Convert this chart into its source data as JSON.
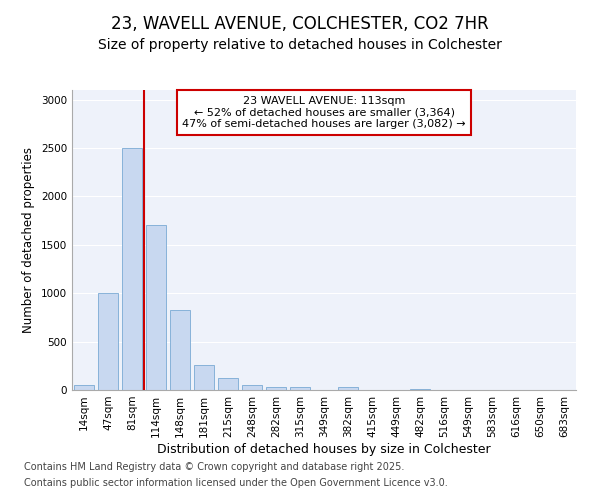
{
  "title1": "23, WAVELL AVENUE, COLCHESTER, CO2 7HR",
  "title2": "Size of property relative to detached houses in Colchester",
  "xlabel": "Distribution of detached houses by size in Colchester",
  "ylabel": "Number of detached properties",
  "categories": [
    "14sqm",
    "47sqm",
    "81sqm",
    "114sqm",
    "148sqm",
    "181sqm",
    "215sqm",
    "248sqm",
    "282sqm",
    "315sqm",
    "349sqm",
    "382sqm",
    "415sqm",
    "449sqm",
    "482sqm",
    "516sqm",
    "549sqm",
    "583sqm",
    "616sqm",
    "650sqm",
    "683sqm"
  ],
  "values": [
    50,
    1000,
    2500,
    1700,
    830,
    260,
    120,
    50,
    30,
    30,
    5,
    30,
    0,
    0,
    15,
    0,
    0,
    0,
    0,
    0,
    0
  ],
  "bar_color": "#c8d8f0",
  "bar_edgecolor": "#7aaad4",
  "vline_x": 2.5,
  "vline_color": "#cc0000",
  "annotation_text": "23 WAVELL AVENUE: 113sqm\n← 52% of detached houses are smaller (3,364)\n47% of semi-detached houses are larger (3,082) →",
  "annotation_box_color": "#cc0000",
  "ylim": [
    0,
    3100
  ],
  "yticks": [
    0,
    500,
    1000,
    1500,
    2000,
    2500,
    3000
  ],
  "background_color": "#eef2fa",
  "grid_color": "#ffffff",
  "footer1": "Contains HM Land Registry data © Crown copyright and database right 2025.",
  "footer2": "Contains public sector information licensed under the Open Government Licence v3.0.",
  "title1_fontsize": 12,
  "title2_fontsize": 10,
  "xlabel_fontsize": 9,
  "ylabel_fontsize": 8.5,
  "tick_fontsize": 7.5,
  "annotation_fontsize": 8,
  "footer_fontsize": 7
}
